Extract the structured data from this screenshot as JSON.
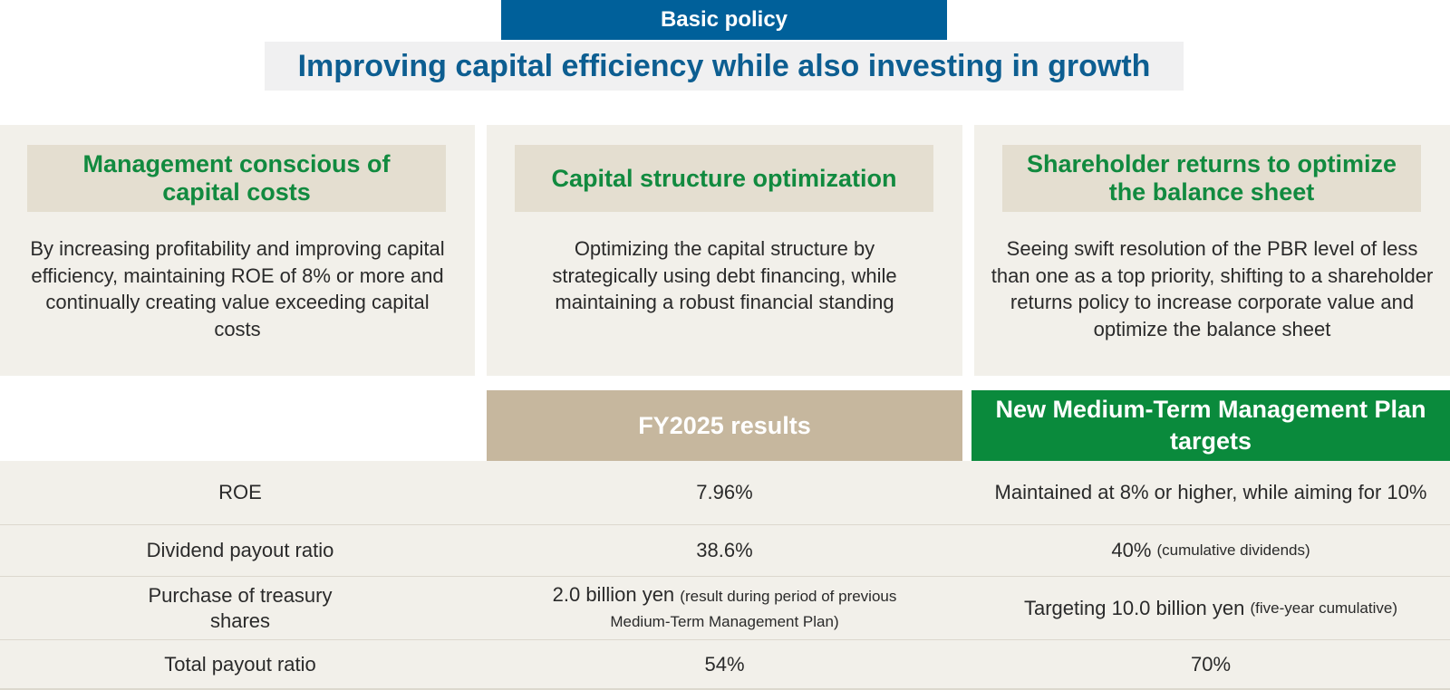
{
  "header": {
    "badge": "Basic policy",
    "headline": "Improving capital efficiency while also investing in growth"
  },
  "pillars": [
    {
      "title": "Management conscious of capital costs",
      "body": "By increasing profitability and improving capital efficiency, maintaining ROE of 8% or more and continually creating value exceeding capital costs"
    },
    {
      "title": "Capital structure optimization",
      "body": "Optimizing the capital structure by strategically using debt financing, while maintaining a robust financial standing"
    },
    {
      "title": "Shareholder returns to optimize the balance sheet",
      "body": "Seeing swift resolution of the PBR level of less than one as a top priority, shifting to a shareholder returns policy to increase corporate value and optimize the balance sheet"
    }
  ],
  "table": {
    "columns": {
      "results": "FY2025 results",
      "targets": "New Medium-Term Management Plan targets"
    },
    "rows": [
      {
        "label": "ROE",
        "result": "7.96%",
        "result_note": "",
        "target": "Maintained at 8% or higher, while aiming for 10%",
        "target_note": ""
      },
      {
        "label": "Dividend payout ratio",
        "result": "38.6%",
        "result_note": "",
        "target": "40%",
        "target_note": "(cumulative dividends)"
      },
      {
        "label": "Purchase of treasury shares",
        "result": "2.0 billion yen",
        "result_note": "(result during period of previous Medium-Term Management Plan)",
        "target": "Targeting 10.0 billion yen",
        "target_note": "(five-year cumulative)"
      },
      {
        "label": "Total payout ratio",
        "result": "54%",
        "result_note": "",
        "target": "70%",
        "target_note": ""
      }
    ]
  },
  "colors": {
    "badge": "#00609a",
    "headline_text": "#0d5e91",
    "pillar_title_text": "#118a3f",
    "pillar_head_bg": "#e4ded0",
    "panel_bg": "#f2f0ea",
    "results_head_bg": "#c6b79e",
    "targets_head_bg": "#0a8a3c"
  }
}
